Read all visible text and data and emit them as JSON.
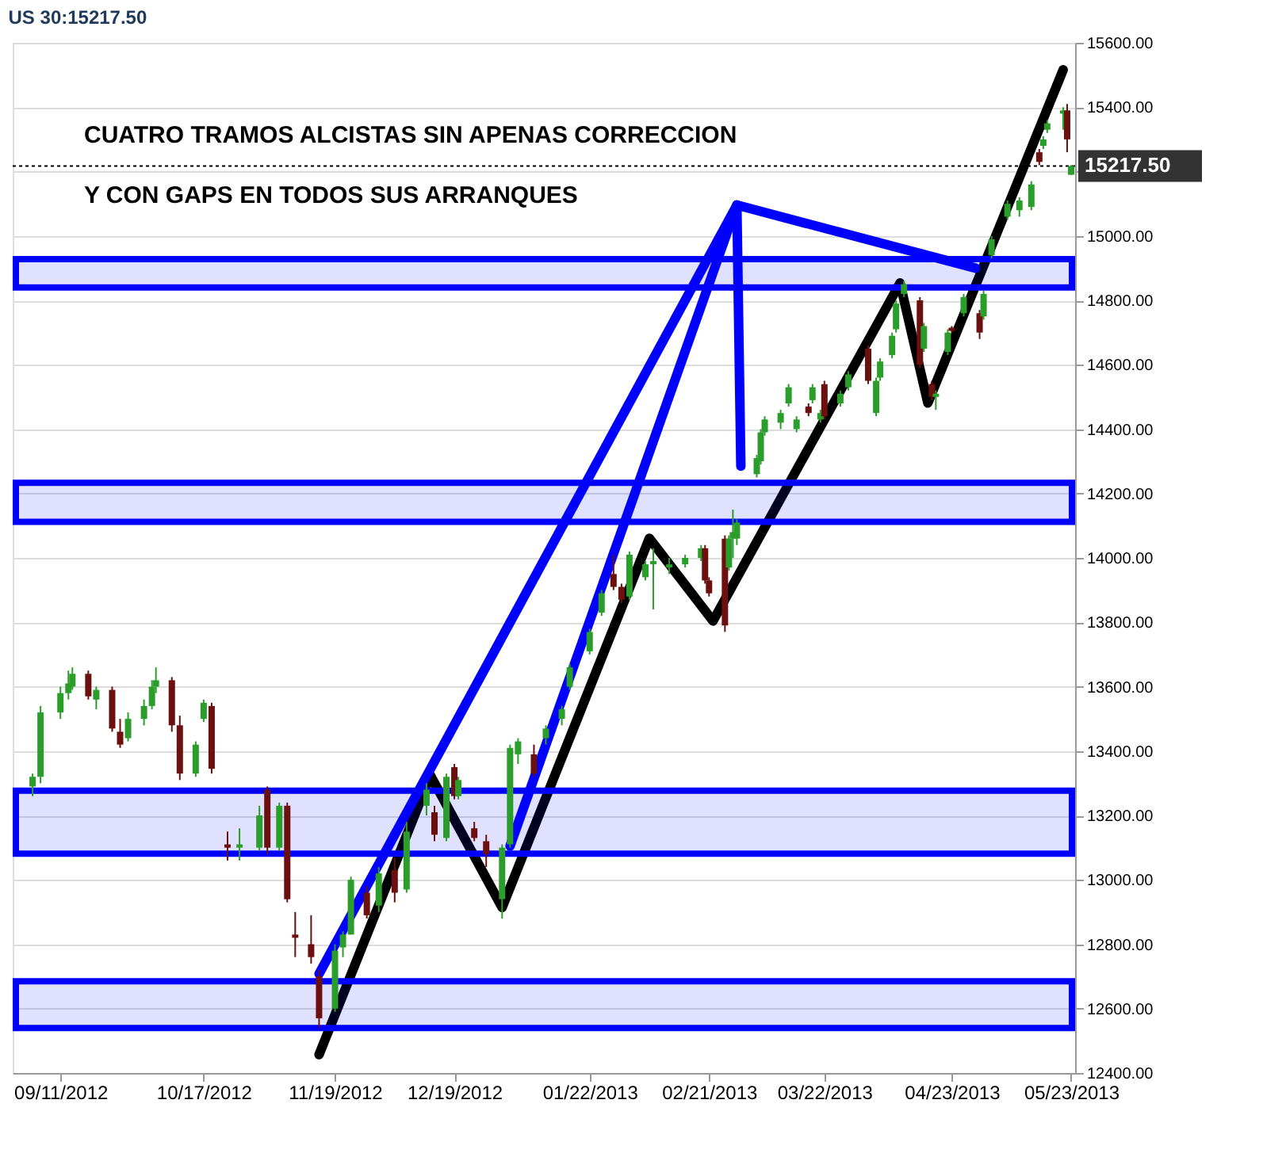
{
  "chart_data": {
    "type": "candlestick",
    "title": "US 30:15217.50",
    "annotations": [
      "CUATRO TRAMOS ALCISTAS SIN APENAS CORRECCION",
      "Y CON GAPS EN TODOS SUS ARRANQUES"
    ],
    "x": [
      "2012-09-04",
      "2012-09-06",
      "2012-09-11",
      "2012-09-13",
      "2012-09-14",
      "2012-09-18",
      "2012-09-20",
      "2012-09-24",
      "2012-09-26",
      "2012-09-28",
      "2012-10-02",
      "2012-10-04",
      "2012-10-05",
      "2012-10-09",
      "2012-10-11",
      "2012-10-15",
      "2012-10-17",
      "2012-10-19",
      "2012-10-23",
      "2012-10-26",
      "2012-10-31",
      "2012-11-02",
      "2012-11-05",
      "2012-11-07",
      "2012-11-09",
      "2012-11-13",
      "2012-11-15",
      "2012-11-19",
      "2012-11-21",
      "2012-11-23",
      "2012-11-27",
      "2012-11-30",
      "2012-12-04",
      "2012-12-07",
      "2012-12-12",
      "2012-12-14",
      "2012-12-17",
      "2012-12-19",
      "2012-12-20",
      "2012-12-24",
      "2012-12-27",
      "2012-12-31",
      "2013-01-02",
      "2013-01-04",
      "2013-01-08",
      "2013-01-11",
      "2013-01-15",
      "2013-01-17",
      "2013-01-22",
      "2013-01-25",
      "2013-01-28",
      "2013-01-30",
      "2013-02-01",
      "2013-02-05",
      "2013-02-07",
      "2013-02-11",
      "2013-02-15",
      "2013-02-19",
      "2013-02-20",
      "2013-02-21",
      "2013-02-25",
      "2013-02-26",
      "2013-02-27",
      "2013-02-28",
      "2013-03-05",
      "2013-03-06",
      "2013-03-07",
      "2013-03-11",
      "2013-03-13",
      "2013-03-15",
      "2013-03-18",
      "2013-03-19",
      "2013-03-21",
      "2013-03-22",
      "2013-03-26",
      "2013-03-28",
      "2013-04-02",
      "2013-04-04",
      "2013-04-05",
      "2013-04-08",
      "2013-04-09",
      "2013-04-11",
      "2013-04-15",
      "2013-04-16",
      "2013-04-18",
      "2013-04-19",
      "2013-04-22",
      "2013-04-23",
      "2013-04-26",
      "2013-04-30",
      "2013-05-01",
      "2013-05-03",
      "2013-05-07",
      "2013-05-10",
      "2013-05-13",
      "2013-05-15",
      "2013-05-16",
      "2013-05-17",
      "2013-05-21",
      "2013-05-22",
      "2013-05-23"
    ],
    "ohlc": [
      [
        13290,
        13330,
        13260,
        13320
      ],
      [
        13320,
        13540,
        13300,
        13520
      ],
      [
        13520,
        13600,
        13500,
        13580
      ],
      [
        13580,
        13650,
        13560,
        13610
      ],
      [
        13600,
        13660,
        13590,
        13640
      ],
      [
        13640,
        13650,
        13560,
        13570
      ],
      [
        13560,
        13600,
        13530,
        13590
      ],
      [
        13590,
        13600,
        13460,
        13470
      ],
      [
        13460,
        13500,
        13410,
        13420
      ],
      [
        13440,
        13520,
        13430,
        13500
      ],
      [
        13500,
        13560,
        13480,
        13540
      ],
      [
        13540,
        13620,
        13530,
        13600
      ],
      [
        13600,
        13660,
        13580,
        13620
      ],
      [
        13620,
        13630,
        13460,
        13480
      ],
      [
        13480,
        13510,
        13310,
        13330
      ],
      [
        13330,
        13430,
        13320,
        13420
      ],
      [
        13500,
        13560,
        13490,
        13550
      ],
      [
        13540,
        13550,
        13330,
        13345
      ],
      [
        13110,
        13150,
        13060,
        13100
      ],
      [
        13100,
        13160,
        13060,
        13110
      ],
      [
        13100,
        13230,
        13090,
        13200
      ],
      [
        13280,
        13290,
        13080,
        13100
      ],
      [
        13100,
        13240,
        13090,
        13230
      ],
      [
        13230,
        13240,
        12930,
        12940
      ],
      [
        12830,
        12900,
        12760,
        12820
      ],
      [
        12800,
        12890,
        12740,
        12760
      ],
      [
        12700,
        12720,
        12540,
        12570
      ],
      [
        12600,
        12800,
        12590,
        12780
      ],
      [
        12790,
        12840,
        12760,
        12830
      ],
      [
        12830,
        13010,
        12830,
        13000
      ],
      [
        12960,
        12980,
        12880,
        12890
      ],
      [
        12920,
        13040,
        12900,
        13020
      ],
      [
        13030,
        13070,
        12930,
        12960
      ],
      [
        12970,
        13180,
        12960,
        13150
      ],
      [
        13230,
        13300,
        13200,
        13280
      ],
      [
        13210,
        13230,
        13120,
        13140
      ],
      [
        13130,
        13330,
        13120,
        13320
      ],
      [
        13350,
        13360,
        13250,
        13260
      ],
      [
        13260,
        13320,
        13250,
        13310
      ],
      [
        13160,
        13180,
        13120,
        13130
      ],
      [
        13120,
        13140,
        13040,
        13080
      ],
      [
        12940,
        13110,
        12880,
        13100
      ],
      [
        13110,
        13420,
        13100,
        13410
      ],
      [
        13390,
        13440,
        13360,
        13430
      ],
      [
        13390,
        13420,
        13320,
        13330
      ],
      [
        13440,
        13480,
        13420,
        13470
      ],
      [
        13500,
        13540,
        13480,
        13530
      ],
      [
        13600,
        13670,
        13590,
        13660
      ],
      [
        13710,
        13780,
        13700,
        13770
      ],
      [
        13830,
        13900,
        13820,
        13890
      ],
      [
        13950,
        14010,
        13900,
        13910
      ],
      [
        13910,
        13920,
        13860,
        13870
      ],
      [
        13880,
        14020,
        13870,
        14010
      ],
      [
        13940,
        13990,
        13930,
        13980
      ],
      [
        13980,
        14030,
        13840,
        13990
      ],
      [
        13970,
        14000,
        13950,
        13980
      ],
      [
        13980,
        14010,
        13970,
        14000
      ],
      [
        14000,
        14040,
        13990,
        14030
      ],
      [
        14030,
        14040,
        13920,
        13930
      ],
      [
        13930,
        13940,
        13880,
        13890
      ],
      [
        14060,
        14070,
        13770,
        13790
      ],
      [
        13970,
        14070,
        13960,
        14060
      ],
      [
        14060,
        14150,
        14000,
        14080
      ],
      [
        14060,
        14120,
        14040,
        14110
      ],
      [
        14260,
        14320,
        14250,
        14310
      ],
      [
        14300,
        14400,
        14290,
        14390
      ],
      [
        14390,
        14440,
        14380,
        14430
      ],
      [
        14420,
        14460,
        14400,
        14450
      ],
      [
        14480,
        14540,
        14470,
        14530
      ],
      [
        14400,
        14440,
        14390,
        14430
      ],
      [
        14470,
        14480,
        14440,
        14450
      ],
      [
        14490,
        14540,
        14480,
        14530
      ],
      [
        14430,
        14460,
        14420,
        14450
      ],
      [
        14540,
        14550,
        14430,
        14440
      ],
      [
        14480,
        14520,
        14470,
        14510
      ],
      [
        14530,
        14580,
        14520,
        14570
      ],
      [
        14650,
        14660,
        14540,
        14550
      ],
      [
        14450,
        14560,
        14440,
        14550
      ],
      [
        14560,
        14620,
        14550,
        14610
      ],
      [
        14630,
        14700,
        14620,
        14690
      ],
      [
        14710,
        14800,
        14700,
        14790
      ],
      [
        14820,
        14860,
        14810,
        14850
      ],
      [
        14800,
        14810,
        14590,
        14600
      ],
      [
        14650,
        14730,
        14640,
        14720
      ],
      [
        14540,
        14550,
        14490,
        14500
      ],
      [
        14500,
        14520,
        14460,
        14510
      ],
      [
        14640,
        14710,
        14630,
        14700
      ],
      [
        14715,
        14720,
        14700,
        14705
      ],
      [
        14760,
        14820,
        14750,
        14810
      ],
      [
        14760,
        14770,
        14680,
        14700
      ],
      [
        14750,
        14830,
        14740,
        14820
      ],
      [
        14940,
        15000,
        14930,
        14990
      ],
      [
        15060,
        15110,
        15050,
        15100
      ],
      [
        15080,
        15120,
        15060,
        15110
      ],
      [
        15090,
        15170,
        15080,
        15160
      ],
      [
        15260,
        15270,
        15220,
        15230
      ],
      [
        15280,
        15310,
        15270,
        15300
      ],
      [
        15330,
        15360,
        15320,
        15350
      ],
      [
        15380,
        15400,
        15330,
        15390
      ],
      [
        15390,
        15410,
        15260,
        15300
      ],
      [
        15190,
        15220,
        15190,
        15217.5
      ]
    ],
    "colors": [
      "#2a9d2a",
      "#2a9d2a",
      "#2a9d2a",
      "#2a9d2a",
      "#2a9d2a",
      "#6b0f0f",
      "#2a9d2a",
      "#6b0f0f",
      "#6b0f0f",
      "#2a9d2a",
      "#2a9d2a",
      "#2a9d2a",
      "#2a9d2a",
      "#6b0f0f",
      "#6b0f0f",
      "#2a9d2a",
      "#2a9d2a",
      "#6b0f0f",
      "#6b0f0f",
      "#2a9d2a",
      "#2a9d2a",
      "#6b0f0f",
      "#2a9d2a",
      "#6b0f0f",
      "#6b0f0f",
      "#6b0f0f",
      "#6b0f0f",
      "#2a9d2a",
      "#2a9d2a",
      "#2a9d2a",
      "#6b0f0f",
      "#2a9d2a",
      "#6b0f0f",
      "#2a9d2a",
      "#2a9d2a",
      "#6b0f0f",
      "#2a9d2a",
      "#6b0f0f",
      "#2a9d2a",
      "#6b0f0f",
      "#6b0f0f",
      "#2a9d2a",
      "#2a9d2a",
      "#2a9d2a",
      "#6b0f0f",
      "#2a9d2a",
      "#2a9d2a",
      "#2a9d2a",
      "#2a9d2a",
      "#2a9d2a",
      "#6b0f0f",
      "#6b0f0f",
      "#2a9d2a",
      "#2a9d2a",
      "#2a9d2a",
      "#2a9d2a",
      "#2a9d2a",
      "#2a9d2a",
      "#6b0f0f",
      "#6b0f0f",
      "#6b0f0f",
      "#2a9d2a",
      "#2a9d2a",
      "#2a9d2a",
      "#2a9d2a",
      "#2a9d2a",
      "#2a9d2a",
      "#2a9d2a",
      "#2a9d2a",
      "#2a9d2a",
      "#6b0f0f",
      "#2a9d2a",
      "#2a9d2a",
      "#6b0f0f",
      "#2a9d2a",
      "#2a9d2a",
      "#6b0f0f",
      "#2a9d2a",
      "#2a9d2a",
      "#2a9d2a",
      "#2a9d2a",
      "#2a9d2a",
      "#6b0f0f",
      "#2a9d2a",
      "#6b0f0f",
      "#2a9d2a",
      "#2a9d2a",
      "#6b0f0f",
      "#2a9d2a",
      "#6b0f0f",
      "#2a9d2a",
      "#2a9d2a",
      "#2a9d2a",
      "#2a9d2a",
      "#2a9d2a",
      "#6b0f0f",
      "#2a9d2a",
      "#2a9d2a",
      "#2a9d2a",
      "#6b0f0f",
      "#2a9d2a"
    ],
    "series": [
      {
        "type": "line",
        "color": "#000000",
        "x": [
          "2012-11-15",
          "2012-12-13",
          "2012-12-31",
          "2013-02-06",
          "2013-02-22",
          "2013-04-10",
          "2013-04-17",
          "2013-05-21"
        ],
        "values": [
          12457,
          13324,
          12914,
          14061,
          13804,
          14854,
          14481,
          15516
        ]
      },
      {
        "type": "line",
        "color": "#0000ff",
        "x": [
          "2013-02-28",
          "2012-11-15"
        ],
        "values": [
          15096,
          12708
        ]
      },
      {
        "type": "line",
        "color": "#0000ff",
        "x": [
          "2013-02-28",
          "2013-01-02"
        ],
        "values": [
          15096,
          13105
        ]
      },
      {
        "type": "line",
        "color": "#0000ff",
        "x": [
          "2013-02-28",
          "2013-03-01"
        ],
        "values": [
          15096,
          14285
        ]
      },
      {
        "type": "line",
        "color": "#0000ff",
        "x": [
          "2013-02-28",
          "2013-04-29"
        ],
        "values": [
          15096,
          14900
        ]
      }
    ],
    "bands": [
      {
        "axis": "y",
        "from": 12540,
        "to": 12685,
        "color": "#0000ff"
      },
      {
        "axis": "y",
        "from": 13081,
        "to": 13277,
        "color": "#0000ff"
      },
      {
        "axis": "y",
        "from": 14112,
        "to": 14233,
        "color": "#0000ff"
      },
      {
        "axis": "y",
        "from": 14840,
        "to": 14928,
        "color": "#0000ff"
      }
    ],
    "ref_lines": [
      {
        "axis": "y",
        "value": 15217.5,
        "label": "15217.50",
        "color": "#000000",
        "line_style": "dotted"
      }
    ],
    "xlim": [
      "2012-08-30",
      "2013-05-24"
    ],
    "xticks": [
      {
        "value": "2012-09-11",
        "label": "09/11/2012"
      },
      {
        "value": "2012-10-17",
        "label": "10/17/2012"
      },
      {
        "value": "2012-11-19",
        "label": "11/19/2012"
      },
      {
        "value": "2012-12-19",
        "label": "12/19/2012"
      },
      {
        "value": "2013-01-22",
        "label": "01/22/2013"
      },
      {
        "value": "2013-02-21",
        "label": "02/21/2013"
      },
      {
        "value": "2013-03-22",
        "label": "03/22/2013"
      },
      {
        "value": "2013-04-23",
        "label": "04/23/2013"
      },
      {
        "value": "2013-05-23",
        "label": "05/23/2013"
      }
    ],
    "ylim": [
      12400,
      15600
    ],
    "yticks": [
      {
        "value": 12400,
        "label": "12400.00"
      },
      {
        "value": 12600,
        "label": "12600.00"
      },
      {
        "value": 12800,
        "label": "12800.00"
      },
      {
        "value": 13000,
        "label": "13000.00"
      },
      {
        "value": 13200,
        "label": "13200.00"
      },
      {
        "value": 13400,
        "label": "13400.00"
      },
      {
        "value": 13600,
        "label": "13600.00"
      },
      {
        "value": 13800,
        "label": "13800.00"
      },
      {
        "value": 14000,
        "label": "14000.00"
      },
      {
        "value": 14200,
        "label": "14200.00"
      },
      {
        "value": 14400,
        "label": "14400.00"
      },
      {
        "value": 14600,
        "label": "14600.00"
      },
      {
        "value": 14800,
        "label": "14800.00"
      },
      {
        "value": 15000,
        "label": "15000.00"
      },
      {
        "value": 15200,
        "label": null
      },
      {
        "value": 15400,
        "label": "15400.00"
      },
      {
        "value": 15600,
        "label": "15600.00"
      }
    ],
    "grid": "y"
  }
}
